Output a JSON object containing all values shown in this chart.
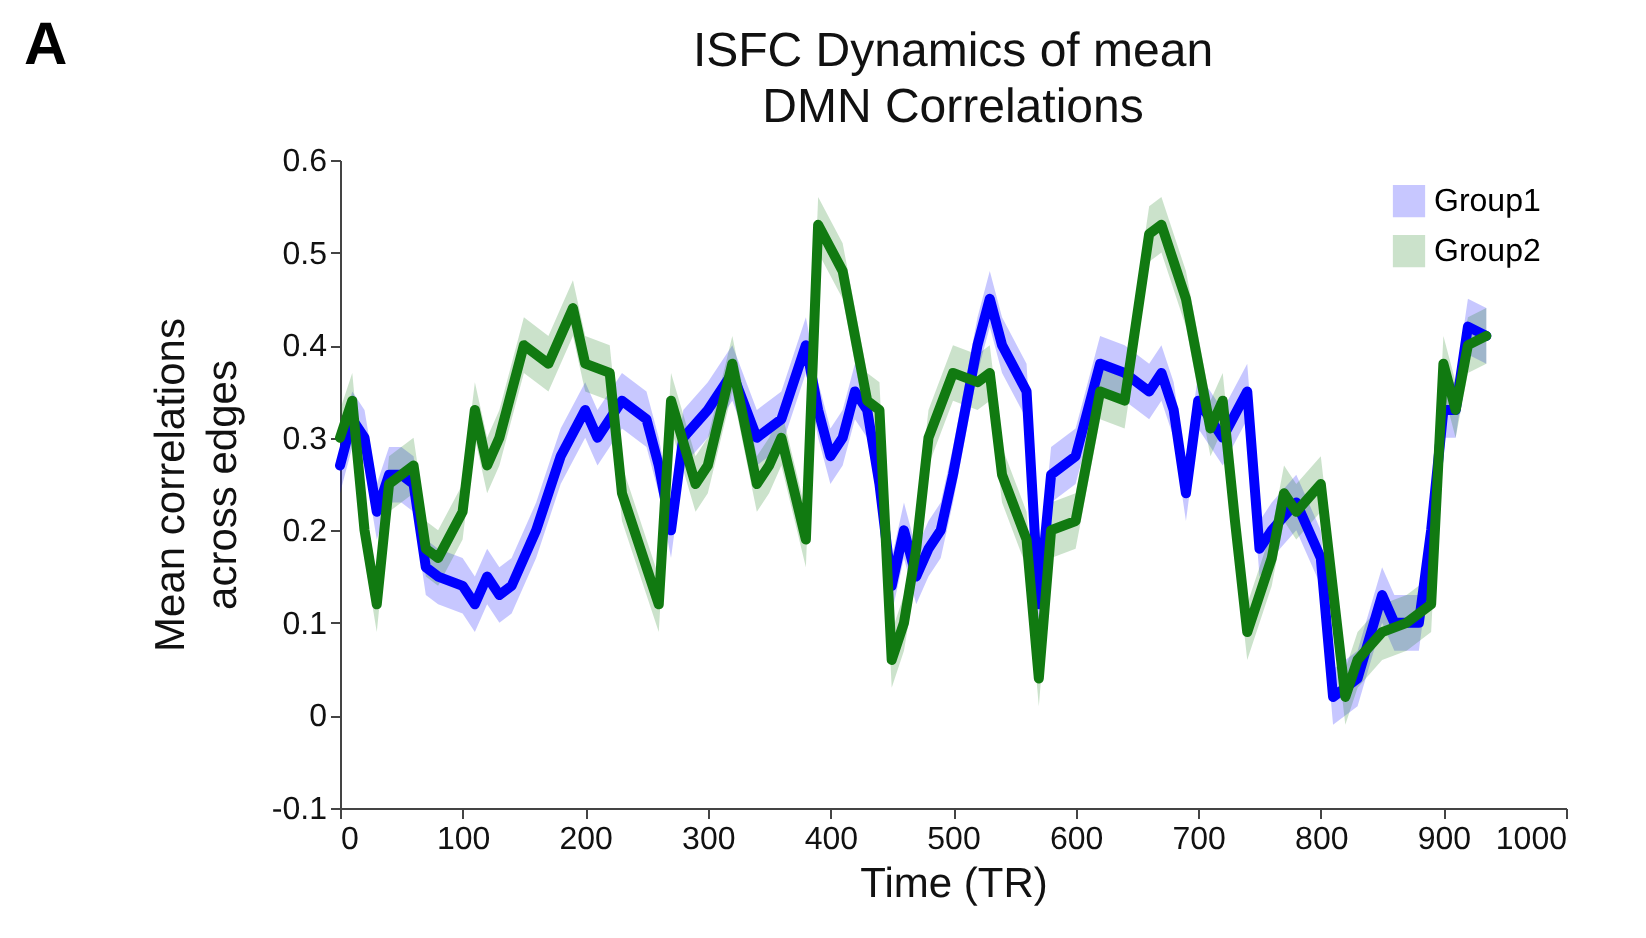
{
  "chart_data": {
    "type": "line",
    "title": "ISFC Dynamics of  mean\nDMN Correlations",
    "xlabel": "Time (TR)",
    "ylabel": "Mean correlations\nacross  edges",
    "annotations": [
      "A"
    ],
    "xlim": [
      0,
      1000
    ],
    "xticks": [
      0,
      100,
      200,
      300,
      400,
      500,
      600,
      700,
      800,
      900,
      1000
    ],
    "ylim": [
      -0.1,
      0.6
    ],
    "yticks": [
      -0.1,
      0,
      0.1,
      0.2,
      0.3,
      0.4,
      0.5,
      0.6
    ],
    "grid": false,
    "legend": "top right",
    "line_style": "solid",
    "marker": "none",
    "series": [
      {
        "name": "Group1",
        "color": "#0000ff",
        "x": [
          0,
          10,
          20,
          30,
          40,
          50,
          60,
          70,
          80,
          100,
          110,
          120,
          130,
          140,
          160,
          180,
          200,
          210,
          230,
          250,
          260,
          270,
          280,
          300,
          320,
          340,
          360,
          380,
          390,
          400,
          410,
          420,
          430,
          440,
          450,
          460,
          470,
          480,
          490,
          500,
          520,
          530,
          540,
          560,
          570,
          580,
          600,
          620,
          640,
          660,
          670,
          680,
          690,
          700,
          720,
          740,
          750,
          760,
          780,
          800,
          810,
          830,
          850,
          860,
          880,
          890,
          900,
          910,
          920,
          935
        ],
        "values": [
          0.27,
          0.32,
          0.3,
          0.22,
          0.26,
          0.26,
          0.25,
          0.16,
          0.15,
          0.14,
          0.12,
          0.15,
          0.13,
          0.14,
          0.2,
          0.28,
          0.33,
          0.3,
          0.34,
          0.32,
          0.27,
          0.2,
          0.3,
          0.33,
          0.37,
          0.3,
          0.32,
          0.4,
          0.33,
          0.28,
          0.3,
          0.35,
          0.33,
          0.25,
          0.14,
          0.2,
          0.15,
          0.18,
          0.2,
          0.26,
          0.4,
          0.45,
          0.4,
          0.35,
          0.12,
          0.26,
          0.28,
          0.38,
          0.37,
          0.35,
          0.37,
          0.33,
          0.24,
          0.34,
          0.3,
          0.35,
          0.18,
          0.2,
          0.23,
          0.17,
          0.02,
          0.04,
          0.13,
          0.1,
          0.1,
          0.2,
          0.33,
          0.33,
          0.42,
          0.41
        ],
        "lower": [
          0.24,
          0.29,
          0.27,
          0.19,
          0.23,
          0.23,
          0.22,
          0.13,
          0.12,
          0.11,
          0.09,
          0.12,
          0.1,
          0.11,
          0.17,
          0.25,
          0.3,
          0.27,
          0.31,
          0.29,
          0.24,
          0.17,
          0.27,
          0.3,
          0.34,
          0.27,
          0.29,
          0.37,
          0.3,
          0.25,
          0.27,
          0.32,
          0.3,
          0.22,
          0.11,
          0.17,
          0.12,
          0.15,
          0.17,
          0.23,
          0.37,
          0.42,
          0.37,
          0.32,
          0.09,
          0.23,
          0.25,
          0.35,
          0.34,
          0.32,
          0.34,
          0.3,
          0.21,
          0.31,
          0.27,
          0.32,
          0.15,
          0.17,
          0.2,
          0.14,
          -0.01,
          0.01,
          0.1,
          0.07,
          0.07,
          0.17,
          0.3,
          0.3,
          0.39,
          0.38
        ],
        "upper": [
          0.3,
          0.35,
          0.33,
          0.25,
          0.29,
          0.29,
          0.28,
          0.19,
          0.18,
          0.17,
          0.15,
          0.18,
          0.16,
          0.17,
          0.23,
          0.31,
          0.36,
          0.33,
          0.37,
          0.35,
          0.3,
          0.23,
          0.33,
          0.36,
          0.4,
          0.33,
          0.35,
          0.43,
          0.36,
          0.31,
          0.33,
          0.38,
          0.36,
          0.28,
          0.17,
          0.23,
          0.18,
          0.21,
          0.23,
          0.29,
          0.43,
          0.48,
          0.43,
          0.38,
          0.15,
          0.29,
          0.31,
          0.41,
          0.4,
          0.38,
          0.4,
          0.36,
          0.27,
          0.37,
          0.33,
          0.38,
          0.21,
          0.23,
          0.26,
          0.2,
          0.05,
          0.07,
          0.16,
          0.13,
          0.13,
          0.23,
          0.36,
          0.36,
          0.45,
          0.44
        ]
      },
      {
        "name": "Group2",
        "color": "#117a11",
        "x": [
          0,
          10,
          20,
          30,
          40,
          50,
          60,
          70,
          80,
          100,
          110,
          120,
          130,
          150,
          170,
          190,
          200,
          220,
          230,
          250,
          260,
          270,
          290,
          300,
          320,
          340,
          350,
          360,
          380,
          390,
          410,
          430,
          440,
          450,
          460,
          470,
          480,
          500,
          520,
          530,
          540,
          560,
          570,
          580,
          600,
          620,
          640,
          660,
          670,
          690,
          710,
          720,
          730,
          740,
          760,
          770,
          780,
          800,
          820,
          830,
          850,
          870,
          890,
          900,
          910,
          920,
          935
        ],
        "values": [
          0.3,
          0.34,
          0.2,
          0.12,
          0.25,
          0.26,
          0.27,
          0.18,
          0.17,
          0.22,
          0.33,
          0.27,
          0.3,
          0.4,
          0.38,
          0.44,
          0.38,
          0.37,
          0.24,
          0.16,
          0.12,
          0.34,
          0.25,
          0.27,
          0.38,
          0.25,
          0.27,
          0.3,
          0.19,
          0.53,
          0.48,
          0.34,
          0.33,
          0.06,
          0.1,
          0.18,
          0.3,
          0.37,
          0.36,
          0.37,
          0.26,
          0.19,
          0.04,
          0.2,
          0.21,
          0.35,
          0.34,
          0.52,
          0.53,
          0.45,
          0.31,
          0.34,
          0.21,
          0.09,
          0.17,
          0.24,
          0.22,
          0.25,
          0.02,
          0.06,
          0.09,
          0.1,
          0.12,
          0.38,
          0.33,
          0.4,
          0.41
        ],
        "lower": [
          0.27,
          0.31,
          0.17,
          0.09,
          0.22,
          0.23,
          0.24,
          0.15,
          0.14,
          0.19,
          0.3,
          0.24,
          0.27,
          0.37,
          0.35,
          0.41,
          0.35,
          0.34,
          0.21,
          0.13,
          0.09,
          0.31,
          0.22,
          0.24,
          0.35,
          0.22,
          0.24,
          0.27,
          0.16,
          0.5,
          0.45,
          0.31,
          0.3,
          0.03,
          0.07,
          0.15,
          0.27,
          0.34,
          0.33,
          0.34,
          0.23,
          0.16,
          0.01,
          0.17,
          0.18,
          0.32,
          0.31,
          0.49,
          0.5,
          0.42,
          0.28,
          0.31,
          0.18,
          0.06,
          0.14,
          0.21,
          0.19,
          0.22,
          -0.01,
          0.03,
          0.06,
          0.07,
          0.09,
          0.35,
          0.3,
          0.37,
          0.38
        ],
        "upper": [
          0.33,
          0.37,
          0.23,
          0.15,
          0.28,
          0.29,
          0.3,
          0.21,
          0.2,
          0.25,
          0.36,
          0.3,
          0.33,
          0.43,
          0.41,
          0.47,
          0.41,
          0.4,
          0.27,
          0.19,
          0.15,
          0.37,
          0.28,
          0.3,
          0.41,
          0.28,
          0.3,
          0.33,
          0.22,
          0.56,
          0.51,
          0.37,
          0.36,
          0.09,
          0.13,
          0.21,
          0.33,
          0.4,
          0.39,
          0.4,
          0.29,
          0.22,
          0.07,
          0.23,
          0.24,
          0.38,
          0.37,
          0.55,
          0.56,
          0.48,
          0.34,
          0.37,
          0.24,
          0.12,
          0.2,
          0.27,
          0.25,
          0.28,
          0.05,
          0.09,
          0.12,
          0.13,
          0.15,
          0.41,
          0.36,
          0.43,
          0.44
        ]
      }
    ]
  }
}
